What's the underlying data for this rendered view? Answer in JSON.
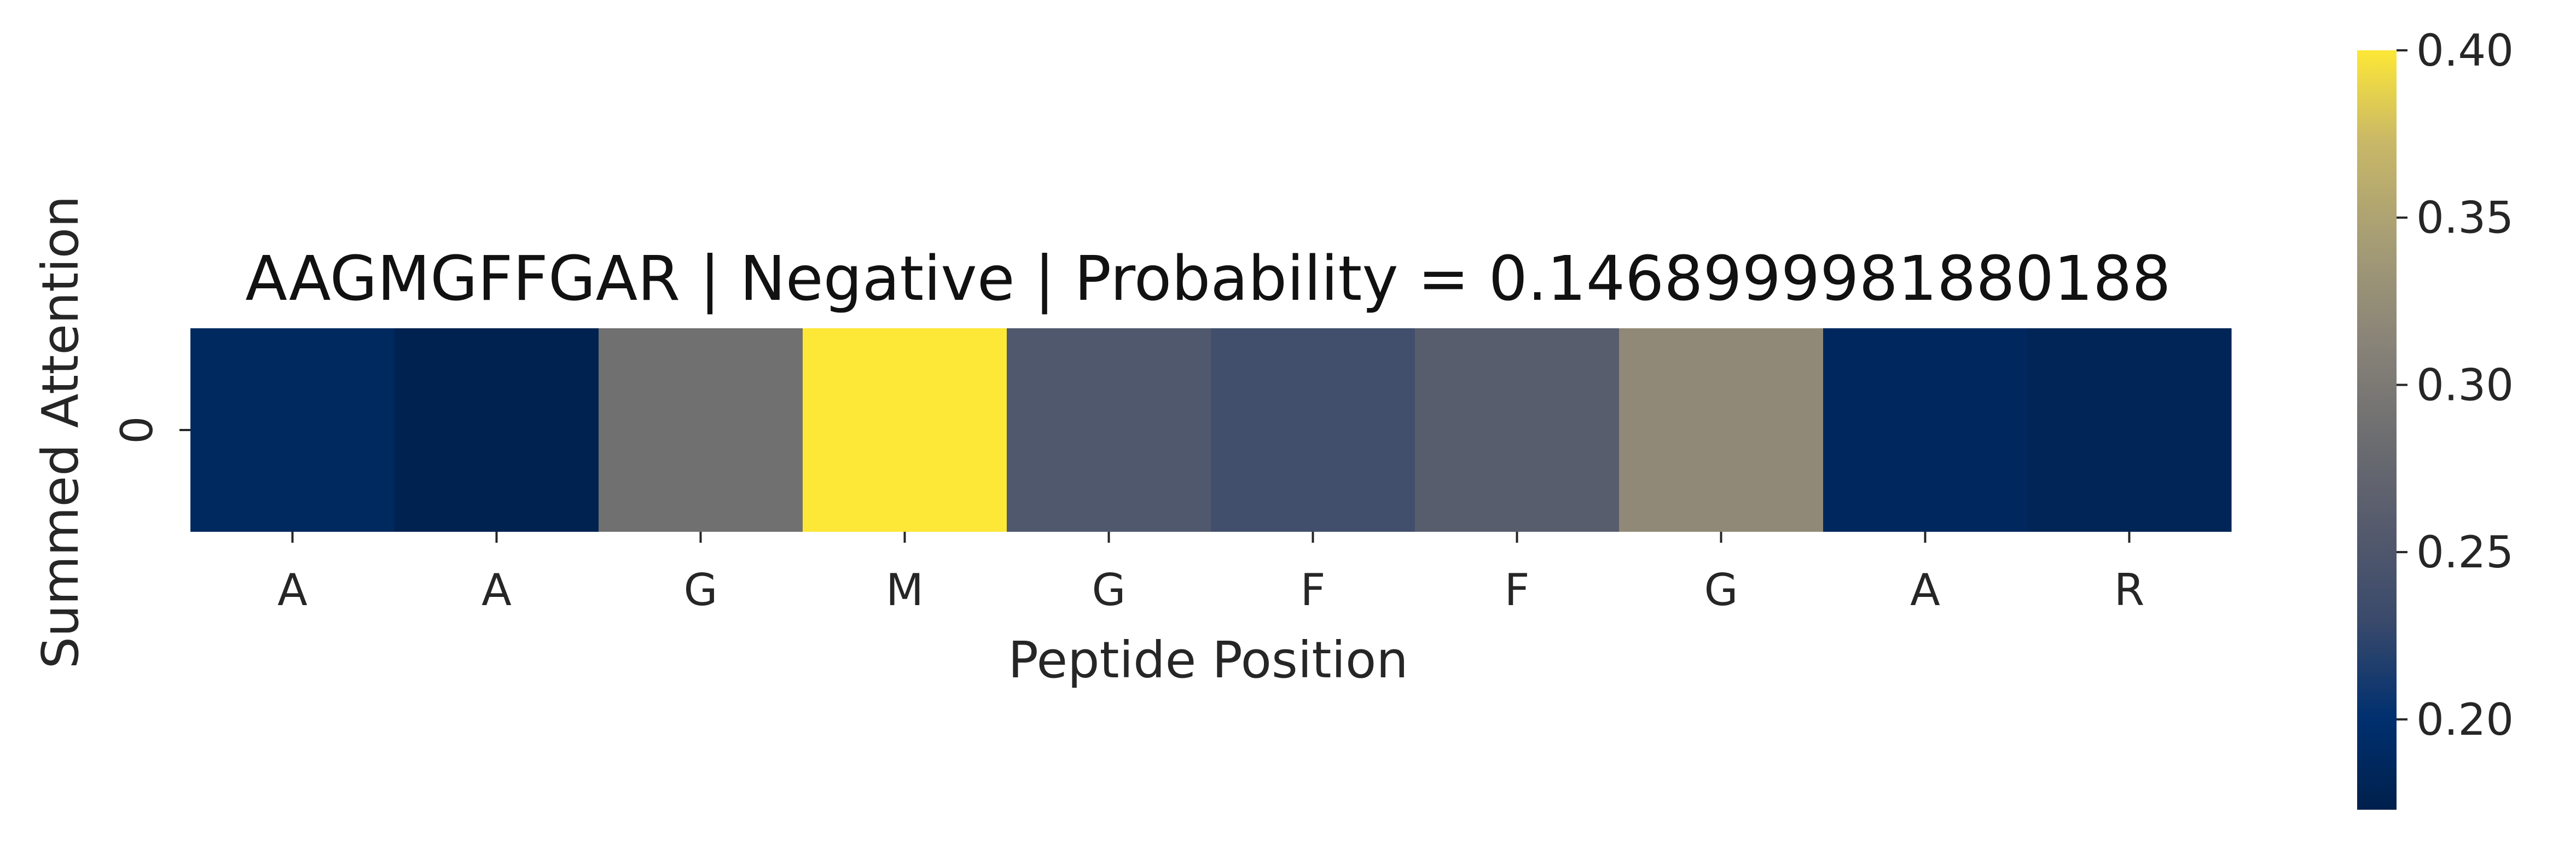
{
  "chart_data": {
    "type": "heatmap",
    "title": "AAGMGFFGAR | Negative | Probability = 0.1468999981880188",
    "xlabel": "Peptide Position",
    "ylabel": "Summed Attention",
    "x_tick_labels": [
      "A",
      "A",
      "G",
      "M",
      "G",
      "F",
      "F",
      "G",
      "A",
      "R"
    ],
    "y_tick_labels": [
      "0"
    ],
    "values": [
      [
        0.188,
        0.177,
        0.288,
        0.4,
        0.252,
        0.238,
        0.26,
        0.32,
        0.187,
        0.181
      ]
    ],
    "colormap": "cividis",
    "vmin": 0.173,
    "vmax": 0.4,
    "colorbar": {
      "ticks": [
        0.2,
        0.25,
        0.3,
        0.35,
        0.4
      ],
      "tick_labels": [
        "0.20",
        "0.25",
        "0.30",
        "0.35",
        "0.40"
      ]
    }
  }
}
